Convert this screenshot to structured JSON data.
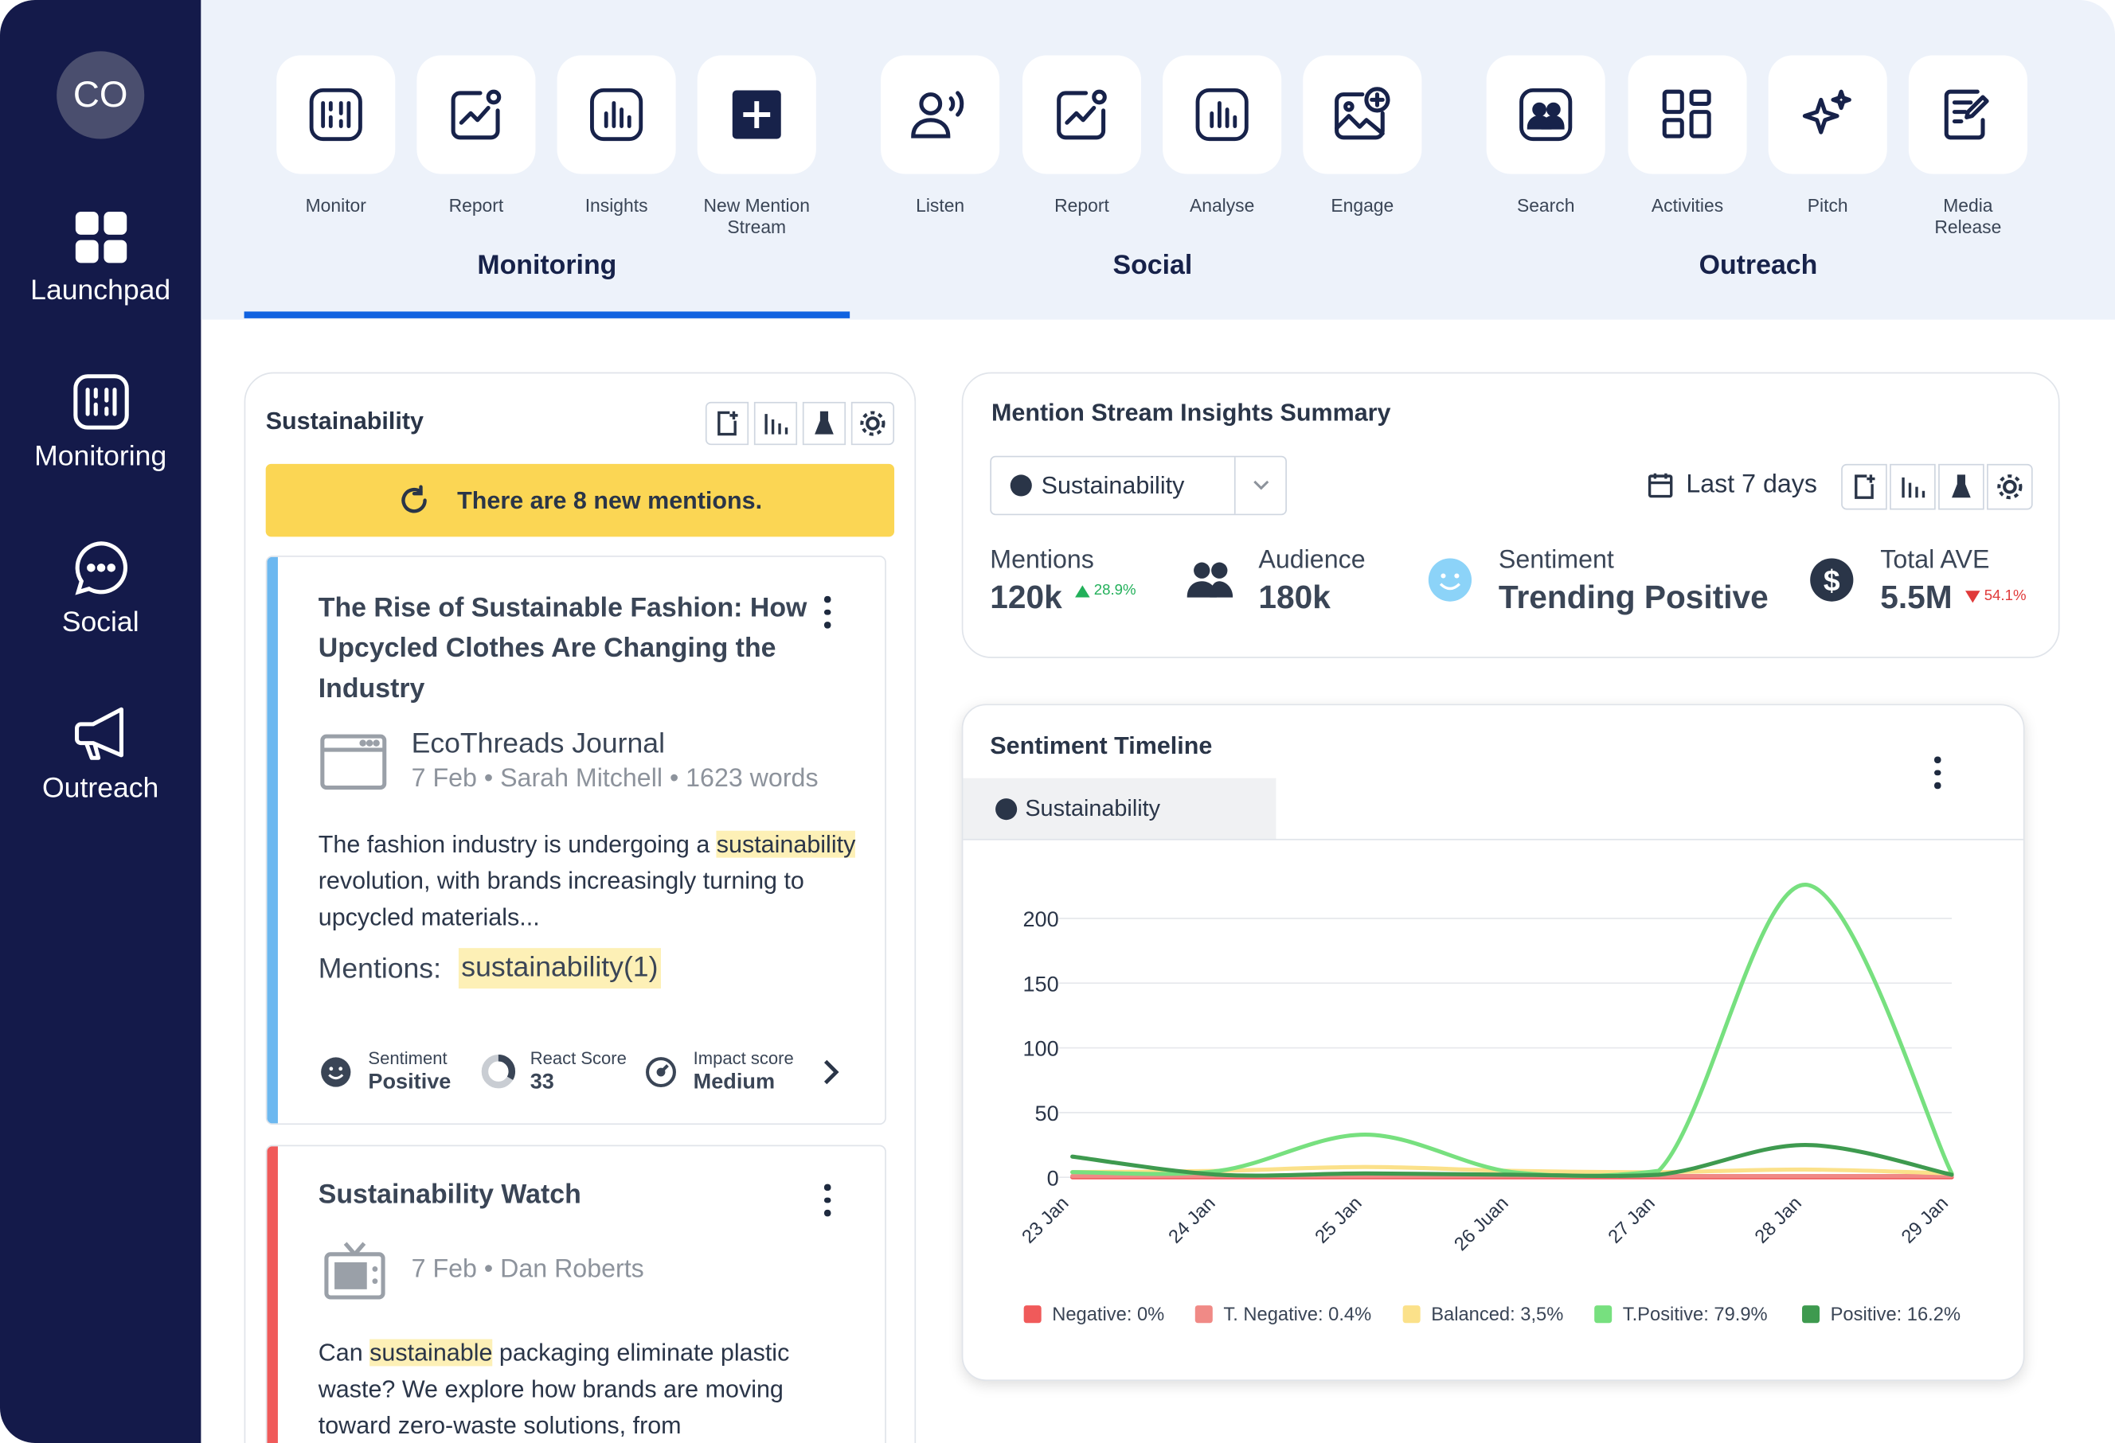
{
  "sidebar": {
    "avatar": "CO",
    "items": [
      {
        "label": "Launchpad",
        "icon": "grid-icon"
      },
      {
        "label": "Monitoring",
        "icon": "monitor-icon"
      },
      {
        "label": "Social",
        "icon": "chat-bubble-icon"
      },
      {
        "label": "Outreach",
        "icon": "megaphone-icon"
      }
    ]
  },
  "toolbar": {
    "tools": [
      {
        "label": "Monitor",
        "icon": "monitor-icon"
      },
      {
        "label": "Report",
        "icon": "report-chart-icon"
      },
      {
        "label": "Insights",
        "icon": "bar-chart-icon"
      },
      {
        "label": "New Mention Stream",
        "icon": "plus-square-icon"
      },
      {
        "label": "Listen",
        "icon": "listen-icon"
      },
      {
        "label": "Report",
        "icon": "report-chart-icon"
      },
      {
        "label": "Analyse",
        "icon": "bar-chart-icon"
      },
      {
        "label": "Engage",
        "icon": "image-plus-icon"
      },
      {
        "label": "Search",
        "icon": "contacts-icon"
      },
      {
        "label": "Activities",
        "icon": "dashboard-icon"
      },
      {
        "label": "Pitch",
        "icon": "sparkle-icon"
      },
      {
        "label": "Media Release",
        "icon": "edit-document-icon"
      }
    ],
    "groups": [
      "Monitoring",
      "Social",
      "Outreach"
    ],
    "active_group": "Monitoring"
  },
  "stream": {
    "title": "Sustainability",
    "banner": "There are 8 new mentions.",
    "cards": [
      {
        "title": "The Rise of Sustainable Fashion: How Upcycled Clothes Are Changing the Industry",
        "source": "EcoThreads Journal",
        "meta": "7 Feb • Sarah Mitchell • 1623 words",
        "body_pre": "The fashion industry is undergoing a ",
        "body_hl": "sustainability",
        "body_post": " revolution, with brands increasingly turning to upcycled materials...",
        "mentions_label": "Mentions:",
        "mentions_value": "sustainability(1)",
        "sentiment_label": "Sentiment",
        "sentiment_value": "Positive",
        "react_label": "React Score",
        "react_value": "33",
        "impact_label": "Impact score",
        "impact_value": "Medium",
        "accent": "#6cb8f0"
      },
      {
        "title": "Sustainability Watch",
        "meta": "7 Feb • Dan Roberts",
        "body_pre": "Can ",
        "body_hl": "sustainable",
        "body_post": " packaging eliminate plastic waste? We explore how brands are moving toward zero-waste solutions, from",
        "accent": "#f05a5a"
      }
    ]
  },
  "summary": {
    "title": "Mention Stream Insights Summary",
    "select_value": "Sustainability",
    "date_range": "Last 7 days",
    "metrics": {
      "mentions_label": "Mentions",
      "mentions_value": "120k",
      "mentions_change": "28.9%",
      "audience_label": "Audience",
      "audience_value": "180k",
      "sentiment_label": "Sentiment",
      "sentiment_value": "Trending Positive",
      "ave_label": "Total AVE",
      "ave_value": "5.5M",
      "ave_change": "54.1%"
    }
  },
  "timeline": {
    "title": "Sentiment Timeline",
    "tab": "Sustainability"
  },
  "chart_data": {
    "type": "line",
    "title": "Sentiment Timeline",
    "categories": [
      "23 Jan",
      "24 Jan",
      "25 Jan",
      "26 Juan",
      "27 Jan",
      "28 Jan",
      "29 Jan"
    ],
    "ylim": [
      0,
      200
    ],
    "yticks": [
      0,
      50,
      100,
      150,
      200
    ],
    "grid": true,
    "legend_position": "bottom",
    "series": [
      {
        "name": "Negative: 0%",
        "color": "#f05a5a",
        "values": [
          0,
          0,
          0,
          0,
          0,
          0,
          0
        ]
      },
      {
        "name": "T. Negative: 0.4%",
        "color": "#f08a86",
        "values": [
          1,
          1,
          1,
          1,
          1,
          1,
          1
        ]
      },
      {
        "name": "Balanced: 3,5%",
        "color": "#fbe18a",
        "values": [
          4,
          5,
          8,
          5,
          4,
          6,
          3
        ]
      },
      {
        "name": "T.Positive: 79.9%",
        "color": "#77e07f",
        "values": [
          4,
          5,
          33,
          4,
          5,
          226,
          3
        ]
      },
      {
        "name": "Positive: 16.2%",
        "color": "#3e9a4f",
        "values": [
          16,
          2,
          3,
          2,
          2,
          25,
          2
        ]
      }
    ]
  }
}
